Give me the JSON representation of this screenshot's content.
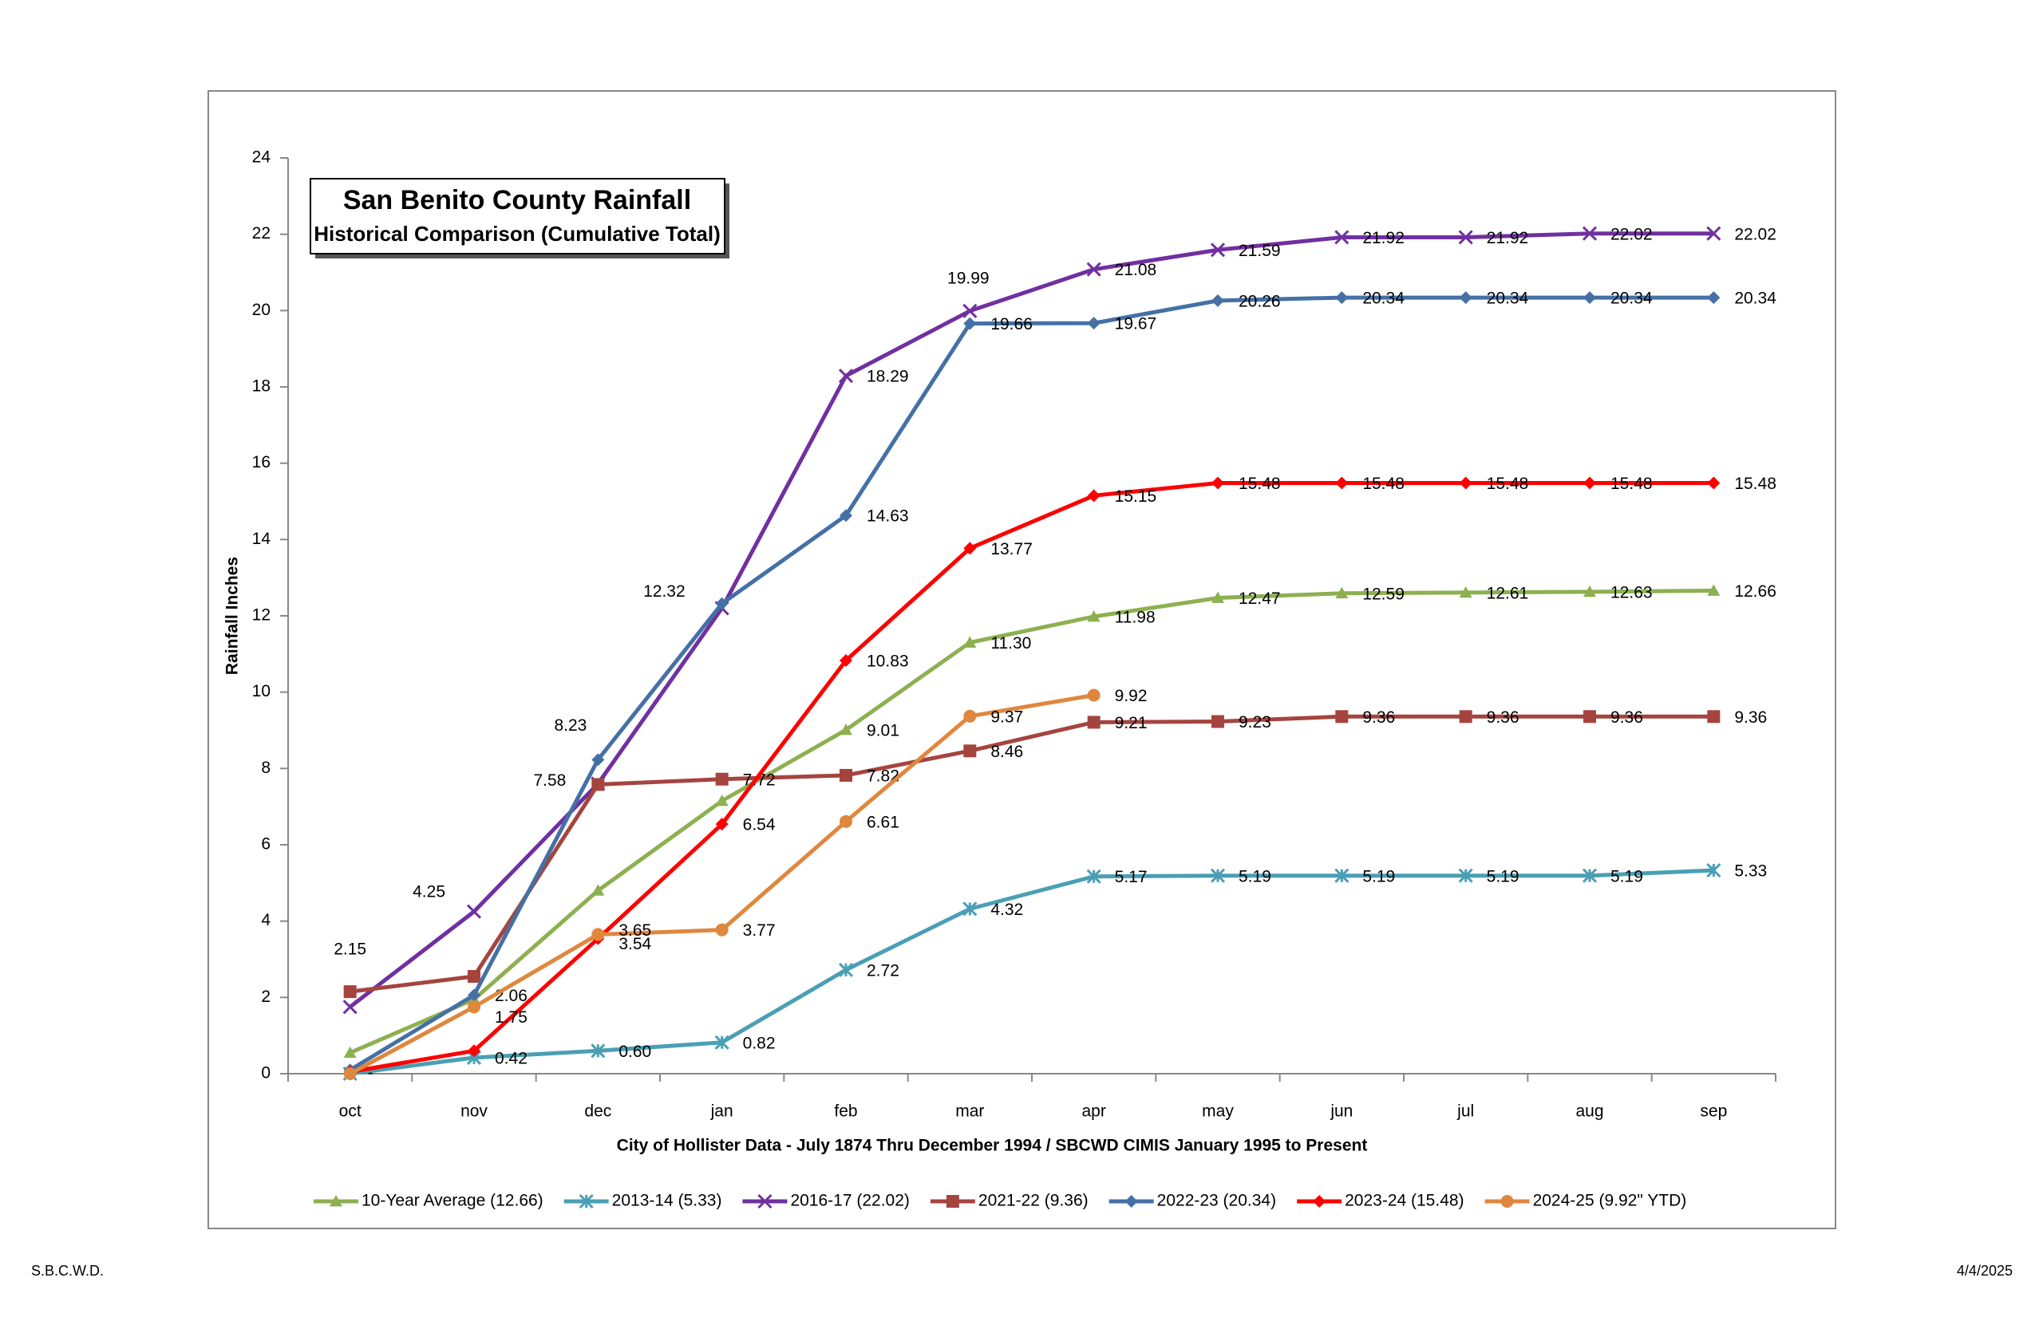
{
  "chart_data": {
    "type": "line",
    "title": "San Benito County Rainfall",
    "subtitle": "Historical Comparison (Cumulative Total)",
    "y_label": "Rainfall Inches",
    "x_label": "City of Hollister Data - July 1874 Thru December 1994 / SBCWD CIMIS January 1995 to Present",
    "footer_left": "S.B.C.W.D.",
    "footer_right": "4/4/2025",
    "categories": [
      "oct",
      "nov",
      "dec",
      "jan",
      "feb",
      "mar",
      "apr",
      "may",
      "jun",
      "jul",
      "aug",
      "sep"
    ],
    "ylim": [
      0,
      24
    ],
    "yticks": [
      0,
      2,
      4,
      6,
      8,
      10,
      12,
      14,
      16,
      18,
      20,
      22,
      24
    ],
    "series": [
      {
        "name": "10-Year Average (12.66)",
        "color": "#8db050",
        "marker": "triangle",
        "values": [
          0.55,
          1.95,
          4.8,
          7.15,
          9.01,
          11.3,
          11.98,
          12.47,
          12.59,
          12.61,
          12.63,
          12.66
        ],
        "value_labels": [
          null,
          null,
          null,
          null,
          "9.01",
          "11.30",
          "11.98",
          "12.47",
          "12.59",
          "12.61",
          "12.63",
          "12.66"
        ]
      },
      {
        "name": "2013-14 (5.33)",
        "color": "#4a9fb5",
        "marker": "star",
        "values": [
          0,
          0.42,
          0.6,
          0.82,
          2.72,
          4.32,
          5.17,
          5.19,
          5.19,
          5.19,
          5.19,
          5.33
        ],
        "value_labels": [
          "-",
          "0.42",
          "0.60",
          "0.82",
          "2.72",
          "4.32",
          "5.17",
          "5.19",
          "5.19",
          "5.19",
          "5.19",
          "5.33"
        ]
      },
      {
        "name": "2016-17 (22.02)",
        "color": "#7030a0",
        "marker": "x",
        "values": [
          1.75,
          4.25,
          7.6,
          12.2,
          18.29,
          19.99,
          21.08,
          21.59,
          21.92,
          21.92,
          22.02,
          22.02
        ],
        "value_labels": [
          null,
          "4.25",
          null,
          null,
          "18.29",
          "19.99",
          "21.08",
          "21.59",
          "21.92",
          "21.92",
          "22.02",
          "22.02"
        ]
      },
      {
        "name": "2021-22 (9.36)",
        "color": "#a5443f",
        "marker": "square",
        "values": [
          2.15,
          2.55,
          7.58,
          7.72,
          7.82,
          8.46,
          9.21,
          9.23,
          9.36,
          9.36,
          9.36,
          9.36
        ],
        "value_labels": [
          "2.15",
          null,
          "7.58",
          "7.72",
          "7.82",
          "8.46",
          "9.21",
          "9.23",
          "9.36",
          "9.36",
          "9.36",
          "9.36"
        ]
      },
      {
        "name": "2022-23 (20.34)",
        "color": "#4470a6",
        "marker": "diamond",
        "values": [
          0.1,
          2.06,
          8.23,
          12.32,
          14.63,
          19.66,
          19.67,
          20.26,
          20.34,
          20.34,
          20.34,
          20.34
        ],
        "value_labels": [
          null,
          "2.06",
          "8.23",
          "12.32",
          "14.63",
          "19.66",
          "19.67",
          "20.26",
          "20.34",
          "20.34",
          "20.34",
          "20.34"
        ]
      },
      {
        "name": "2023-24 (15.48)",
        "color": "#ff0000",
        "marker": "diamond",
        "values": [
          0.05,
          0.6,
          3.54,
          6.54,
          10.83,
          13.77,
          15.15,
          15.48,
          15.48,
          15.48,
          15.48,
          15.48
        ],
        "value_labels": [
          null,
          null,
          "3.54",
          "6.54",
          "10.83",
          "13.77",
          "15.15",
          "15.48",
          "15.48",
          "15.48",
          "15.48",
          "15.48"
        ]
      },
      {
        "name": "2024-25 (9.92\" YTD)",
        "color": "#e0873e",
        "marker": "circle",
        "values": [
          0,
          1.75,
          3.65,
          3.77,
          6.61,
          9.37,
          9.92,
          null,
          null,
          null,
          null,
          null
        ],
        "value_labels": [
          null,
          "1.75",
          "3.65",
          "3.77",
          "6.61",
          "9.37",
          "9.92",
          null,
          null,
          null,
          null,
          null
        ]
      }
    ]
  }
}
